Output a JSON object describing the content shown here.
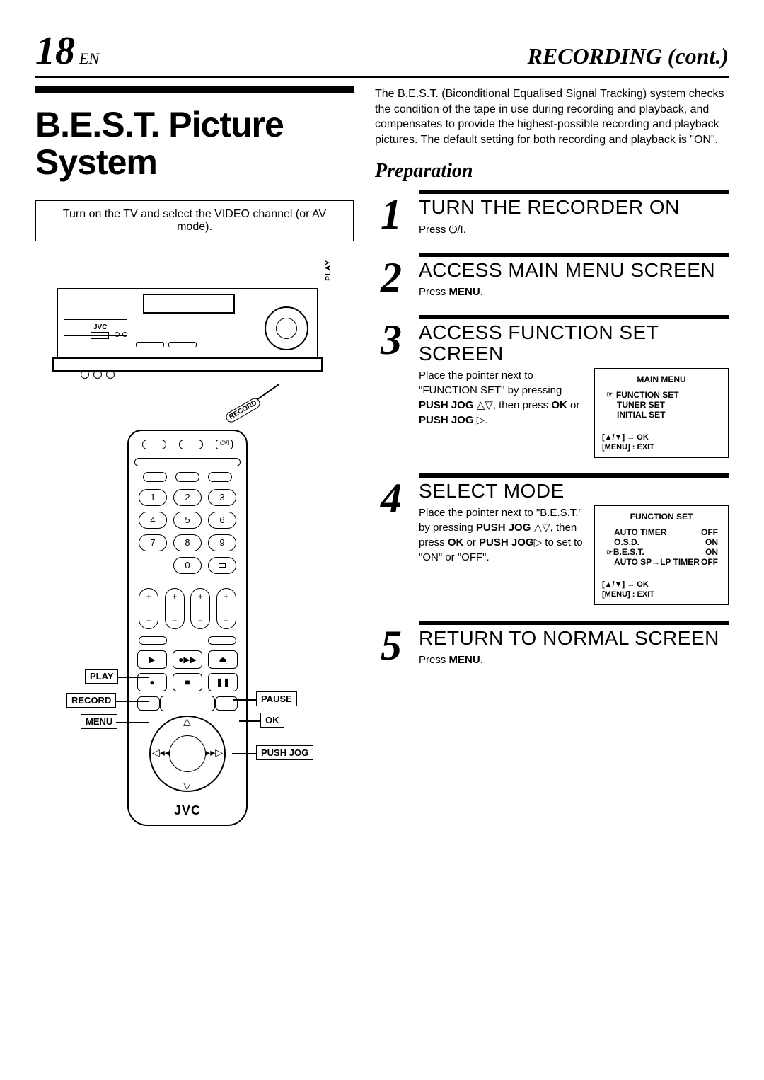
{
  "header": {
    "page_number": "18",
    "lang": "EN",
    "section": "RECORDING (cont.)"
  },
  "topic_title": "B.E.S.T. Picture System",
  "tv_note": "Turn on the TV and select the VIDEO channel (or AV mode).",
  "intro": "The B.E.S.T. (Biconditional Equalised Signal Tracking) system checks the condition of the tape in use during recording and playback, and compensates to provide the highest-possible recording and playback pictures. The default setting for both recording and playback is \"ON\".",
  "preparation_heading": "Preparation",
  "diagram": {
    "brand": "JVC",
    "play_label": "PLAY",
    "record_label": "RECORD"
  },
  "remote": {
    "brand": "JVC",
    "callouts": {
      "play": "PLAY",
      "pause": "PAUSE",
      "record": "RECORD",
      "ok": "OK",
      "menu": "MENU",
      "push_jog": "PUSH JOG"
    },
    "numpad": [
      "1",
      "2",
      "3",
      "4",
      "5",
      "6",
      "7",
      "8",
      "9",
      "0"
    ]
  },
  "steps": [
    {
      "num": "1",
      "title": "TURN THE RECORDER ON",
      "text_html": "Press ⏻/I."
    },
    {
      "num": "2",
      "title": "ACCESS MAIN MENU SCREEN",
      "text_html": "Press <b>MENU</b>."
    },
    {
      "num": "3",
      "title": "ACCESS FUNCTION SET SCREEN",
      "text_html": "Place the pointer next to \"FUNCTION SET\" by pressing <b>PUSH JOG</b> △▽, then press <b>OK</b> or <b>PUSH JOG</b> ▷.",
      "osd": {
        "title": "MAIN MENU",
        "items": [
          {
            "label": "FUNCTION SET",
            "cursor": true
          },
          {
            "label": "TUNER SET"
          },
          {
            "label": "INITIAL SET"
          }
        ],
        "bottom": [
          "[▲/▼] → OK",
          "[MENU] : EXIT"
        ]
      }
    },
    {
      "num": "4",
      "title": "SELECT MODE",
      "text_html": "Place the pointer next to \"B.E.S.T.\" by pressing <b>PUSH JOG</b> △▽, then press <b>OK</b> or <b>PUSH JOG</b>▷ to set to \"ON\" or \"OFF\".",
      "osd": {
        "title": "FUNCTION SET",
        "rows": [
          {
            "label": "AUTO TIMER",
            "value": "OFF"
          },
          {
            "label": "O.S.D.",
            "value": "ON"
          },
          {
            "label": "B.E.S.T.",
            "value": "ON",
            "cursor": true
          },
          {
            "label": "AUTO SP→LP TIMER",
            "value": "OFF"
          }
        ],
        "bottom": [
          "[▲/▼] → OK",
          "[MENU] : EXIT"
        ]
      }
    },
    {
      "num": "5",
      "title": "RETURN TO NORMAL SCREEN",
      "text_html": "Press <b>MENU</b>."
    }
  ],
  "style": {
    "page_bg": "#ffffff",
    "ink": "#000000",
    "page_num_fontsize": 56,
    "section_fontsize": 32,
    "topic_fontsize": 50,
    "step_title_fontsize": 28,
    "step_num_fontsize": 60,
    "body_fontsize": 16,
    "osd_fontsize": 12
  }
}
